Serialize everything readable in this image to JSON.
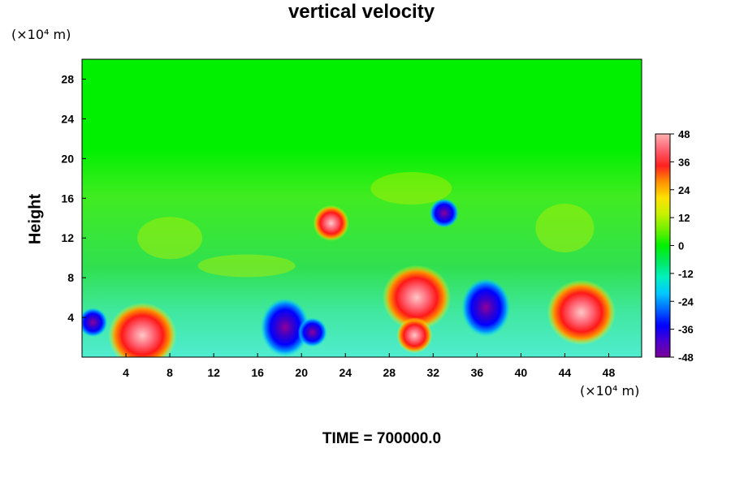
{
  "chart_data": {
    "type": "heatmap",
    "title": "vertical velocity",
    "ylabel": "Height",
    "y_unit": "(×10⁴ m)",
    "x_unit": "(×10⁴ m)",
    "footer": "TIME = 700000.0",
    "xlim": [
      0,
      51
    ],
    "ylim": [
      0,
      30
    ],
    "x_ticks": [
      "4",
      "8",
      "12",
      "16",
      "20",
      "24",
      "28",
      "32",
      "36",
      "40",
      "44",
      "48"
    ],
    "y_ticks": [
      "4",
      "8",
      "12",
      "16",
      "20",
      "24",
      "28"
    ],
    "colorbar": {
      "range": [
        -48,
        48
      ],
      "ticks": [
        "48",
        "36",
        "24",
        "12",
        "0",
        "-12",
        "-24",
        "-36",
        "-48"
      ],
      "colors": [
        "#7b0099",
        "#4b00d0",
        "#0000ff",
        "#0068ff",
        "#00c8ff",
        "#00f0c0",
        "#00e860",
        "#00f000",
        "#70f000",
        "#c8f000",
        "#ffe000",
        "#ff9000",
        "#ff2020",
        "#ff6070",
        "#ffb0b0"
      ]
    },
    "features": [
      {
        "kind": "updraft",
        "x": 5.5,
        "y": 2.2,
        "peak": 48
      },
      {
        "kind": "updraft",
        "x": 30.5,
        "y": 6.0,
        "peak": 48
      },
      {
        "kind": "updraft",
        "x": 30.3,
        "y": 2.2,
        "peak": 40
      },
      {
        "kind": "updraft",
        "x": 45.5,
        "y": 4.5,
        "peak": 48
      },
      {
        "kind": "updraft",
        "x": 22.7,
        "y": 13.5,
        "peak": 36
      },
      {
        "kind": "downdraft",
        "x": 1.0,
        "y": 3.5,
        "peak": -40
      },
      {
        "kind": "downdraft",
        "x": 18.5,
        "y": 3.0,
        "peak": -48
      },
      {
        "kind": "downdraft",
        "x": 21.0,
        "y": 2.5,
        "peak": -40
      },
      {
        "kind": "downdraft",
        "x": 36.8,
        "y": 5.0,
        "peak": -48
      },
      {
        "kind": "downdraft",
        "x": 33.0,
        "y": 14.5,
        "peak": -40
      }
    ]
  }
}
